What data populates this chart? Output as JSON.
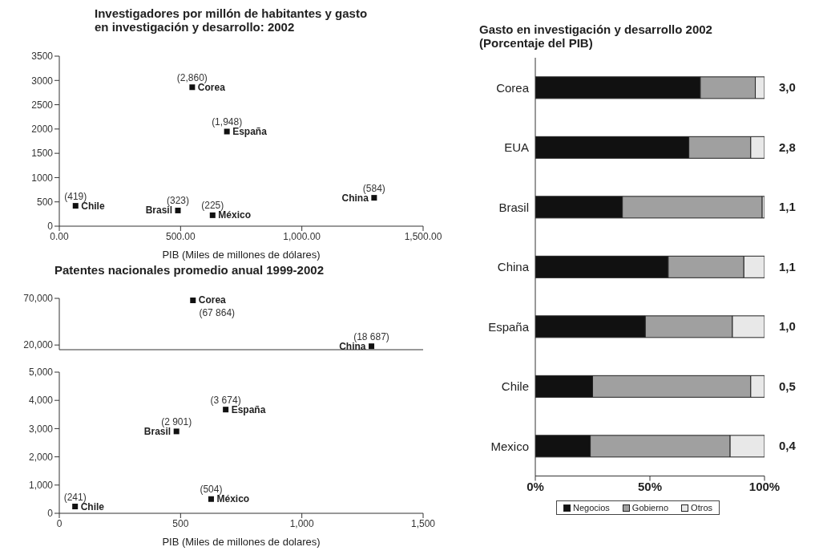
{
  "chart_data": [
    {
      "type": "scatter",
      "title": "Investigadores por millón de habitantes y gasto en investigación y desarrollo: 2002",
      "xlabel": "PIB (Miles de millones de dólares)",
      "xlim": [
        0,
        1500
      ],
      "xticks": [
        {
          "value": 0,
          "label": "0.00"
        },
        {
          "value": 500,
          "label": "500.00"
        },
        {
          "value": 1000,
          "label": "1,000.00"
        },
        {
          "value": 1500,
          "label": "1,500.00"
        }
      ],
      "ylim": [
        0,
        3500
      ],
      "yticks": [
        0,
        500,
        1000,
        1500,
        2000,
        2500,
        3000,
        3500
      ],
      "marker": "square",
      "series": [
        {
          "name": "Corea",
          "color": "#111111",
          "x": [
            548
          ],
          "values": [
            2860
          ],
          "value_labels": [
            "(2,860)"
          ]
        },
        {
          "name": "España",
          "color": "#111111",
          "x": [
            691
          ],
          "values": [
            1948
          ],
          "value_labels": [
            "(1,948)"
          ]
        },
        {
          "name": "Chile",
          "color": "#111111",
          "x": [
            67
          ],
          "values": [
            419
          ],
          "value_labels": [
            "(419)"
          ]
        },
        {
          "name": "Brasil",
          "color": "#111111",
          "x": [
            489
          ],
          "values": [
            323
          ],
          "value_labels": [
            "(323)"
          ]
        },
        {
          "name": "México",
          "color": "#111111",
          "x": [
            632
          ],
          "values": [
            225
          ],
          "value_labels": [
            "(225)"
          ]
        },
        {
          "name": "China",
          "color": "#111111",
          "x": [
            1298
          ],
          "values": [
            584
          ],
          "value_labels": [
            "(584)"
          ]
        }
      ]
    },
    {
      "type": "scatter",
      "title": "Patentes nacionales promedio anual 1999-2002",
      "xlim": [
        0,
        1500
      ],
      "ylim": [
        15000,
        70000
      ],
      "yticks": [
        {
          "value": 20000,
          "label": "20,000"
        },
        {
          "value": 70000,
          "label": "70,000"
        }
      ],
      "tick_labels": "y",
      "marker": "square",
      "series": [
        {
          "name": "Corea",
          "color": "#111111",
          "x": [
            551
          ],
          "values": [
            67864
          ],
          "value_labels": [
            "(67 864)"
          ]
        },
        {
          "name": "China",
          "color": "#111111",
          "x": [
            1287
          ],
          "values": [
            18687
          ],
          "value_labels": [
            "(18 687)"
          ]
        }
      ]
    },
    {
      "type": "scatter",
      "xlabel": "PIB (Miles de millones de dolares)",
      "xlim": [
        0,
        1500
      ],
      "xticks": [
        0,
        500,
        {
          "value": 1000,
          "label": "1,000"
        },
        {
          "value": 1500,
          "label": "1,500"
        }
      ],
      "ylim": [
        0,
        5000
      ],
      "yticks": [
        0,
        {
          "value": 1000,
          "label": "1,000"
        },
        {
          "value": 2000,
          "label": "2,000"
        },
        {
          "value": 3000,
          "label": "3,000"
        },
        {
          "value": 4000,
          "label": "4,000"
        },
        {
          "value": 5000,
          "label": "5,000"
        }
      ],
      "marker": "square",
      "series": [
        {
          "name": "España",
          "color": "#111111",
          "x": [
            686
          ],
          "values": [
            3674
          ],
          "value_labels": [
            "(3 674)"
          ]
        },
        {
          "name": "Brasil",
          "color": "#111111",
          "x": [
            483
          ],
          "values": [
            2901
          ],
          "value_labels": [
            "(2 901)"
          ]
        },
        {
          "name": "Chile",
          "color": "#111111",
          "x": [
            65
          ],
          "values": [
            241
          ],
          "value_labels": [
            "(241)"
          ]
        },
        {
          "name": "México",
          "color": "#111111",
          "x": [
            626
          ],
          "values": [
            504
          ],
          "value_labels": [
            "(504)"
          ]
        }
      ]
    },
    {
      "type": "bar",
      "title": "Gasto en investigación y desarrollo 2002 (Porcentaje del PIB)",
      "orientation": "horizontal",
      "stacked": true,
      "categories": [
        "Corea",
        "EUA",
        "Brasil",
        "China",
        "España",
        "Chile",
        "Mexico"
      ],
      "xlim": [
        0,
        100
      ],
      "xticks": [
        {
          "value": 0,
          "label": "0%"
        },
        {
          "value": 50,
          "label": "50%"
        },
        {
          "value": 100,
          "label": "100%"
        }
      ],
      "legend": "bottom",
      "series": [
        {
          "name": "Negocios",
          "color": "#111111",
          "values": [
            72,
            67,
            38,
            58,
            48,
            25,
            24
          ]
        },
        {
          "name": "Gobierno",
          "color": "#a0a0a0",
          "values": [
            24,
            27,
            61,
            33,
            38,
            69,
            61
          ]
        },
        {
          "name": "Otros",
          "color": "#e8e8e8",
          "values": [
            4,
            6,
            1,
            9,
            14,
            6,
            15
          ]
        }
      ],
      "annotations": [
        "3,0",
        "2,8",
        "1,1",
        "1,1",
        "1,0",
        "0,5",
        "0,4"
      ]
    }
  ]
}
